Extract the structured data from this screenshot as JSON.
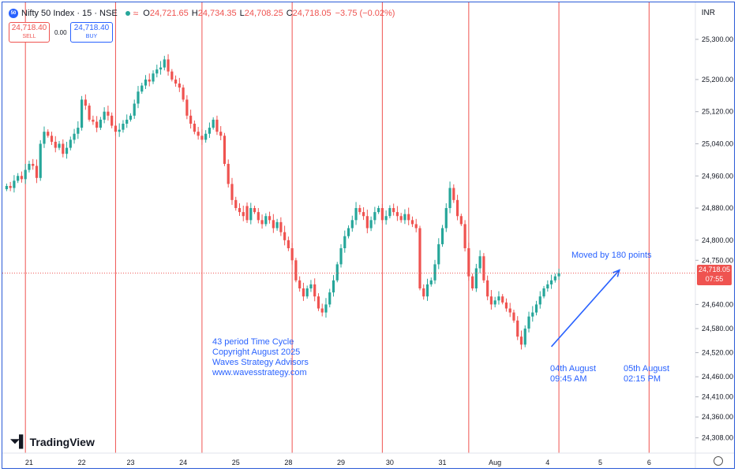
{
  "header": {
    "symbol_badge": "50",
    "title": "Nifty 50 Index · 15 · NSE",
    "flag_icon": "waves-icon",
    "ohlc": [
      {
        "label": "O",
        "value": "24,721.65"
      },
      {
        "label": "H",
        "value": "24,734.35"
      },
      {
        "label": "L",
        "value": "24,708.25"
      },
      {
        "label": "C",
        "value": "24,718.05"
      }
    ],
    "change": "−3.75 (−0.02%)"
  },
  "trade": {
    "sell_price": "24,718.40",
    "sell_label": "SELL",
    "spread": "0.00",
    "buy_price": "24,718.40",
    "buy_label": "BUY"
  },
  "currency": "INR",
  "last_price": {
    "value": "24,718.05",
    "countdown": "07:55",
    "price": 24718.05
  },
  "annotations": {
    "cycle_lines": [
      "43 period Time Cycle",
      "Copyright August 2025",
      "Waves Strategy Advisors",
      "www.wavesstrategy.com"
    ],
    "moved": "Moved by 180 points",
    "date1": [
      "04th August",
      "09:45 AM"
    ],
    "date2": [
      "05th August",
      "02:15 PM"
    ]
  },
  "brand": "TradingView",
  "colors": {
    "up": "#26a69a",
    "down": "#ef5350",
    "cycle_line": "#ef5350",
    "annotation": "#2962ff",
    "frame": "#2a5bd7"
  },
  "chart_data": {
    "type": "candlestick",
    "ylim": [
      24270,
      25345
    ],
    "y_ticks": [
      25300,
      25200,
      25120,
      25040,
      24960,
      24880,
      24800,
      24750,
      24640,
      24580,
      24520,
      24460,
      24410,
      24360,
      24308
    ],
    "x_ticks": [
      {
        "label": "21",
        "idx": 6
      },
      {
        "label": "22",
        "idx": 20
      },
      {
        "label": "23",
        "idx": 33
      },
      {
        "label": "24",
        "idx": 47
      },
      {
        "label": "25",
        "idx": 61
      },
      {
        "label": "28",
        "idx": 75
      },
      {
        "label": "29",
        "idx": 89
      },
      {
        "label": "30",
        "idx": 102
      },
      {
        "label": "31",
        "idx": 116
      },
      {
        "label": "Aug",
        "idx": 130
      },
      {
        "label": "4",
        "idx": 144
      },
      {
        "label": "5",
        "idx": 158
      },
      {
        "label": "6",
        "idx": 171
      }
    ],
    "cycle_line_idx": [
      5,
      29,
      52,
      76,
      100,
      123,
      147,
      171
    ],
    "gap_after_idx": 63,
    "trend_arrow": {
      "from_idx": 145,
      "from_price": 24535,
      "to_idx": 161,
      "to_price": 24710
    },
    "close": [
      24935,
      24930,
      24948,
      24960,
      24952,
      24975,
      24990,
      24985,
      24955,
      25040,
      25070,
      25060,
      25045,
      25030,
      25040,
      25015,
      25030,
      25050,
      25065,
      25080,
      25150,
      25135,
      25100,
      25095,
      25080,
      25100,
      25120,
      25110,
      25085,
      25070,
      25075,
      25090,
      25100,
      25110,
      25140,
      25170,
      25185,
      25200,
      25195,
      25215,
      25225,
      25230,
      25250,
      25220,
      25200,
      25190,
      25180,
      25150,
      25110,
      25090,
      25070,
      25060,
      25050,
      25065,
      25080,
      25100,
      25070,
      25060,
      24990,
      24940,
      24900,
      24880,
      24870,
      24860,
      24850,
      24880,
      24870,
      24850,
      24840,
      24860,
      24850,
      24830,
      24845,
      24820,
      24800,
      24780,
      24750,
      24700,
      24680,
      24660,
      24680,
      24690,
      24660,
      24630,
      24620,
      24640,
      24670,
      24700,
      24740,
      24780,
      24810,
      24830,
      24850,
      24880,
      24870,
      24860,
      24830,
      24850,
      24870,
      24880,
      24850,
      24860,
      24880,
      24870,
      24860,
      24850,
      24865,
      24850,
      24840,
      24830,
      24680,
      24660,
      24690,
      24700,
      24740,
      24790,
      24830,
      24880,
      24930,
      24900,
      24860,
      24840,
      24780,
      24710,
      24680,
      24730,
      24760,
      24700,
      24660,
      24640,
      24650,
      24660,
      24645,
      24630,
      24620,
      24600,
      24560,
      24540,
      24580,
      24610,
      24620,
      24640,
      24660,
      24680,
      24690,
      24700,
      24710,
      24718
    ]
  }
}
